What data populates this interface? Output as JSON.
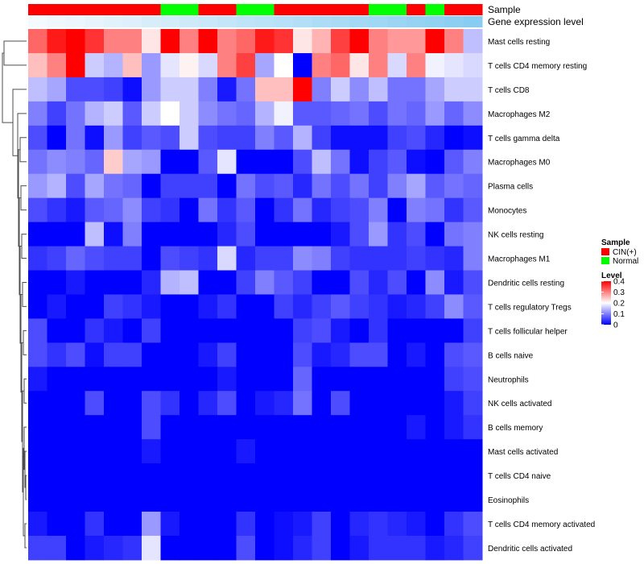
{
  "chart_data": {
    "type": "heatmap",
    "annotation_rows": [
      {
        "label": "Sample",
        "values": [
          "CIN(+)",
          "CIN(+)",
          "CIN(+)",
          "CIN(+)",
          "CIN(+)",
          "CIN(+)",
          "CIN(+)",
          "Normal",
          "Normal",
          "CIN(+)",
          "CIN(+)",
          "Normal",
          "Normal",
          "CIN(+)",
          "CIN(+)",
          "CIN(+)",
          "CIN(+)",
          "CIN(+)",
          "Normal",
          "Normal",
          "CIN(+)",
          "Normal",
          "CIN(+)",
          "CIN(+)"
        ]
      },
      {
        "label": "Gene expression level",
        "values": [
          0.02,
          0.06,
          0.1,
          0.14,
          0.18,
          0.22,
          0.27,
          0.31,
          0.35,
          0.39,
          0.43,
          0.47,
          0.51,
          0.55,
          0.59,
          0.63,
          0.67,
          0.71,
          0.75,
          0.79,
          0.83,
          0.87,
          0.91,
          0.95
        ],
        "color_low": "#f7fbfe",
        "color_high": "#82cbf0"
      }
    ],
    "rows": [
      "Mast cells resting",
      "T cells CD4 memory resting",
      "T cells CD8",
      "Macrophages M2",
      "T cells gamma delta",
      "Macrophages M0",
      "Plasma cells",
      "Monocytes",
      "NK cells resting",
      "Macrophages M1",
      "Dendritic cells resting",
      "T cells regulatory  Tregs",
      "T cells follicular helper",
      "B cells naive",
      "Neutrophils",
      "NK cells activated",
      "B cells memory",
      "Mast cells activated",
      "T cells CD4 naive",
      "Eosinophils",
      "T cells CD4 memory activated",
      "Dendritic cells activated"
    ],
    "values": [
      [
        0.32,
        0.38,
        0.4,
        0.36,
        0.3,
        0.3,
        0.22,
        0.4,
        0.3,
        0.4,
        0.3,
        0.32,
        0.38,
        0.36,
        0.22,
        0.26,
        0.35,
        0.4,
        0.3,
        0.28,
        0.28,
        0.4,
        0.3,
        0.15
      ],
      [
        0.25,
        0.3,
        0.4,
        0.16,
        0.14,
        0.25,
        0.12,
        0.18,
        0.21,
        0.17,
        0.3,
        0.35,
        0.13,
        0.2,
        0.0,
        0.3,
        0.32,
        0.22,
        0.3,
        0.17,
        0.3,
        0.19,
        0.18,
        0.17
      ],
      [
        0.15,
        0.13,
        0.06,
        0.06,
        0.05,
        0.01,
        0.12,
        0.16,
        0.16,
        0.1,
        0.02,
        0.09,
        0.25,
        0.25,
        0.4,
        0.1,
        0.16,
        0.11,
        0.15,
        0.09,
        0.09,
        0.13,
        0.16,
        0.16
      ],
      [
        0.1,
        0.05,
        0.09,
        0.14,
        0.16,
        0.07,
        0.16,
        0.2,
        0.16,
        0.11,
        0.09,
        0.08,
        0.14,
        0.19,
        0.07,
        0.07,
        0.08,
        0.09,
        0.06,
        0.09,
        0.08,
        0.12,
        0.08,
        0.11
      ],
      [
        0.06,
        0.0,
        0.09,
        0.01,
        0.12,
        0.05,
        0.07,
        0.06,
        0.16,
        0.06,
        0.05,
        0.05,
        0.1,
        0.07,
        0.14,
        0.05,
        0.01,
        0.01,
        0.01,
        0.05,
        0.06,
        0.03,
        0.0,
        0.01
      ],
      [
        0.09,
        0.11,
        0.1,
        0.08,
        0.24,
        0.13,
        0.12,
        0.0,
        0.0,
        0.07,
        0.18,
        0.0,
        0.0,
        0.0,
        0.06,
        0.15,
        0.09,
        0.01,
        0.05,
        0.07,
        0.01,
        0.0,
        0.07,
        0.1
      ],
      [
        0.12,
        0.14,
        0.06,
        0.13,
        0.09,
        0.08,
        0.0,
        0.05,
        0.05,
        0.05,
        0.0,
        0.09,
        0.06,
        0.07,
        0.03,
        0.09,
        0.06,
        0.09,
        0.05,
        0.1,
        0.13,
        0.07,
        0.09,
        0.08
      ],
      [
        0.06,
        0.04,
        0.02,
        0.07,
        0.08,
        0.11,
        0.05,
        0.04,
        0.0,
        0.09,
        0.04,
        0.07,
        0.0,
        0.04,
        0.09,
        0.03,
        0.05,
        0.06,
        0.1,
        0.0,
        0.1,
        0.09,
        0.04,
        0.07
      ],
      [
        0.0,
        0.0,
        0.0,
        0.15,
        0.01,
        0.1,
        0.0,
        0.0,
        0.0,
        0.0,
        0.03,
        0.06,
        0.0,
        0.0,
        0.0,
        0.0,
        0.02,
        0.06,
        0.12,
        0.04,
        0.06,
        0.0,
        0.09,
        0.1
      ],
      [
        0.04,
        0.05,
        0.08,
        0.06,
        0.05,
        0.05,
        0.0,
        0.06,
        0.05,
        0.04,
        0.17,
        0.03,
        0.05,
        0.05,
        0.11,
        0.1,
        0.05,
        0.04,
        0.04,
        0.04,
        0.05,
        0.04,
        0.03,
        0.1
      ],
      [
        0.0,
        0.0,
        0.02,
        0.0,
        0.0,
        0.0,
        0.03,
        0.14,
        0.15,
        0.0,
        0.0,
        0.05,
        0.1,
        0.07,
        0.05,
        0.0,
        0.0,
        0.06,
        0.03,
        0.06,
        0.0,
        0.11,
        0.02,
        0.06
      ],
      [
        0.0,
        0.02,
        0.0,
        0.0,
        0.05,
        0.04,
        0.02,
        0.0,
        0.0,
        0.02,
        0.04,
        0.0,
        0.0,
        0.05,
        0.03,
        0.05,
        0.07,
        0.05,
        0.04,
        0.02,
        0.03,
        0.05,
        0.11,
        0.07
      ],
      [
        0.06,
        0.0,
        0.0,
        0.04,
        0.02,
        0.0,
        0.05,
        0.0,
        0.0,
        0.0,
        0.0,
        0.0,
        0.0,
        0.0,
        0.05,
        0.06,
        0.02,
        0.0,
        0.04,
        0.0,
        0.0,
        0.0,
        0.0,
        0.05
      ],
      [
        0.06,
        0.04,
        0.06,
        0.01,
        0.05,
        0.05,
        0.0,
        0.0,
        0.0,
        0.02,
        0.05,
        0.0,
        0.0,
        0.0,
        0.06,
        0.02,
        0.03,
        0.06,
        0.06,
        0.0,
        0.02,
        0.0,
        0.06,
        0.07
      ],
      [
        0.02,
        0.0,
        0.0,
        0.0,
        0.0,
        0.0,
        0.0,
        0.0,
        0.0,
        0.0,
        0.02,
        0.0,
        0.0,
        0.0,
        0.08,
        0.0,
        0.0,
        0.0,
        0.0,
        0.0,
        0.0,
        0.0,
        0.05,
        0.06
      ],
      [
        0.0,
        0.0,
        0.0,
        0.06,
        0.0,
        0.0,
        0.06,
        0.04,
        0.0,
        0.03,
        0.06,
        0.0,
        0.02,
        0.03,
        0.09,
        0.0,
        0.06,
        0.0,
        0.0,
        0.0,
        0.0,
        0.0,
        0.02,
        0.05
      ],
      [
        0.0,
        0.0,
        0.0,
        0.0,
        0.0,
        0.0,
        0.06,
        0.0,
        0.0,
        0.0,
        0.0,
        0.0,
        0.0,
        0.0,
        0.0,
        0.0,
        0.0,
        0.0,
        0.0,
        0.0,
        0.02,
        0.0,
        0.02,
        0.04
      ],
      [
        0.0,
        0.0,
        0.0,
        0.0,
        0.0,
        0.0,
        0.02,
        0.0,
        0.0,
        0.0,
        0.0,
        0.02,
        0.0,
        0.0,
        0.0,
        0.0,
        0.0,
        0.0,
        0.0,
        0.0,
        0.0,
        0.0,
        0.0,
        0.0
      ],
      [
        0.0,
        0.0,
        0.0,
        0.0,
        0.0,
        0.0,
        0.0,
        0.0,
        0.0,
        0.0,
        0.0,
        0.0,
        0.0,
        0.0,
        0.0,
        0.0,
        0.0,
        0.0,
        0.0,
        0.0,
        0.0,
        0.0,
        0.0,
        0.0
      ],
      [
        0.0,
        0.0,
        0.0,
        0.0,
        0.0,
        0.0,
        0.0,
        0.0,
        0.0,
        0.0,
        0.0,
        0.0,
        0.0,
        0.0,
        0.0,
        0.0,
        0.0,
        0.0,
        0.0,
        0.0,
        0.0,
        0.0,
        0.0,
        0.0
      ],
      [
        0.02,
        0.0,
        0.0,
        0.04,
        0.0,
        0.0,
        0.12,
        0.02,
        0.0,
        0.0,
        0.0,
        0.04,
        0.0,
        0.01,
        0.02,
        0.05,
        0.0,
        0.03,
        0.04,
        0.03,
        0.02,
        0.0,
        0.04,
        0.06
      ],
      [
        0.05,
        0.05,
        0.0,
        0.02,
        0.03,
        0.04,
        0.18,
        0.0,
        0.0,
        0.0,
        0.0,
        0.06,
        0.0,
        0.01,
        0.03,
        0.05,
        0.0,
        0.02,
        0.04,
        0.04,
        0.04,
        0.02,
        0.03,
        0.05
      ]
    ],
    "color_scale": {
      "low": "#0000ff",
      "mid": "#ffffff",
      "high": "#ff0000",
      "min": 0,
      "max": 0.4
    },
    "legend": {
      "sample_title": "Sample",
      "sample_entries": [
        {
          "label": "CIN(+)",
          "color": "#ff0000"
        },
        {
          "label": "Normal",
          "color": "#00ff00"
        }
      ],
      "level_title": "Level",
      "level_ticks": [
        "0.4",
        "0.3",
        "0.2",
        "0.1",
        "0"
      ],
      "placement": "right"
    },
    "row_dendrogram": true,
    "title": "",
    "xlabel": "",
    "ylabel": ""
  }
}
